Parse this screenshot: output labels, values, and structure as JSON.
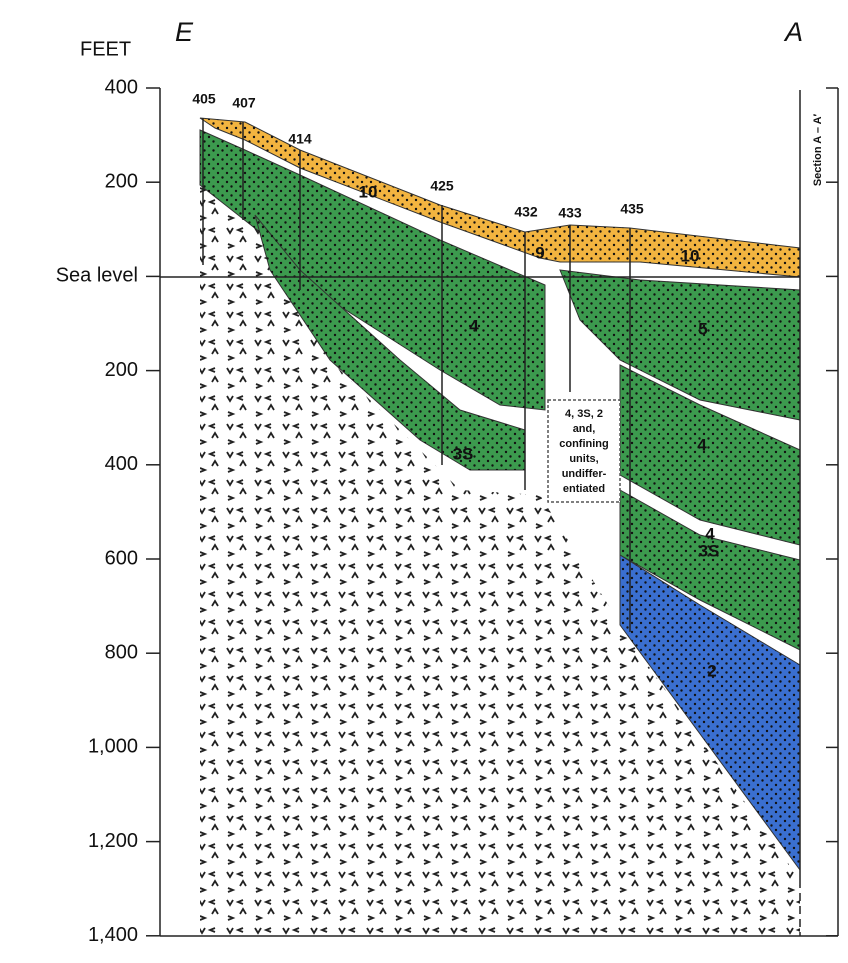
{
  "header": {
    "unit_label": "FEET",
    "left_end": "E",
    "right_end": "A"
  },
  "depth_axis": [
    "400",
    "200",
    "Sea level",
    "200",
    "400",
    "600",
    "800",
    "1,000",
    "1,200",
    "1,400"
  ],
  "wells": [
    "405",
    "407",
    "414",
    "425",
    "432",
    "433",
    "435"
  ],
  "units": [
    "10",
    "10",
    "9",
    "4",
    "5",
    "4",
    "3S",
    "4",
    "3S",
    "2"
  ],
  "note": [
    "4, 3S, 2",
    "and,",
    "confining",
    "units,",
    "undiffer-",
    "entiated"
  ],
  "section_label": "Section A – A′"
}
